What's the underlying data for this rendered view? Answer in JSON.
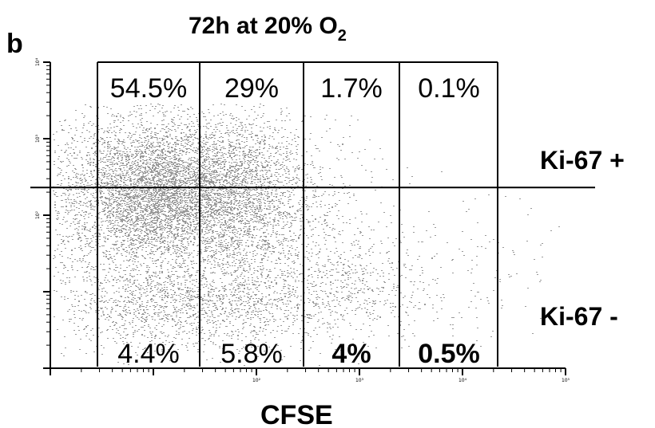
{
  "chart_data": {
    "type": "scatter",
    "panel_letter": "b",
    "title_main": "72h at 20% O",
    "title_subscript": "2",
    "xlabel": "CFSE",
    "ylabel": "",
    "x_scale": "log",
    "y_scale": "log",
    "xlim": [
      1,
      100000
    ],
    "ylim": [
      1,
      10000
    ],
    "x_tick_labels": [
      "10²",
      "10³",
      "10⁴",
      "10⁵"
    ],
    "y_tick_labels": [
      "10⁴",
      "10³",
      "10²"
    ],
    "y_tick_values": [
      10000,
      1000,
      100
    ],
    "x_tick_values": [
      100,
      1000,
      10000,
      100000
    ],
    "point_color": "#777777",
    "line_color": "#000000",
    "horizontal_gate_y": 230,
    "gate_boundaries_x": [
      8,
      300,
      3000,
      30000,
      300000
    ],
    "row_labels": {
      "top": "Ki-67 +",
      "bottom": "Ki-67 -"
    },
    "quadrants_top": [
      "54.5%",
      "29%",
      "1.7%",
      "0.1%"
    ],
    "quadrants_bottom": [
      "4.4%",
      "5.8%",
      "4%",
      "0.5%"
    ],
    "bold_bottom_indices": [
      2,
      3
    ]
  }
}
